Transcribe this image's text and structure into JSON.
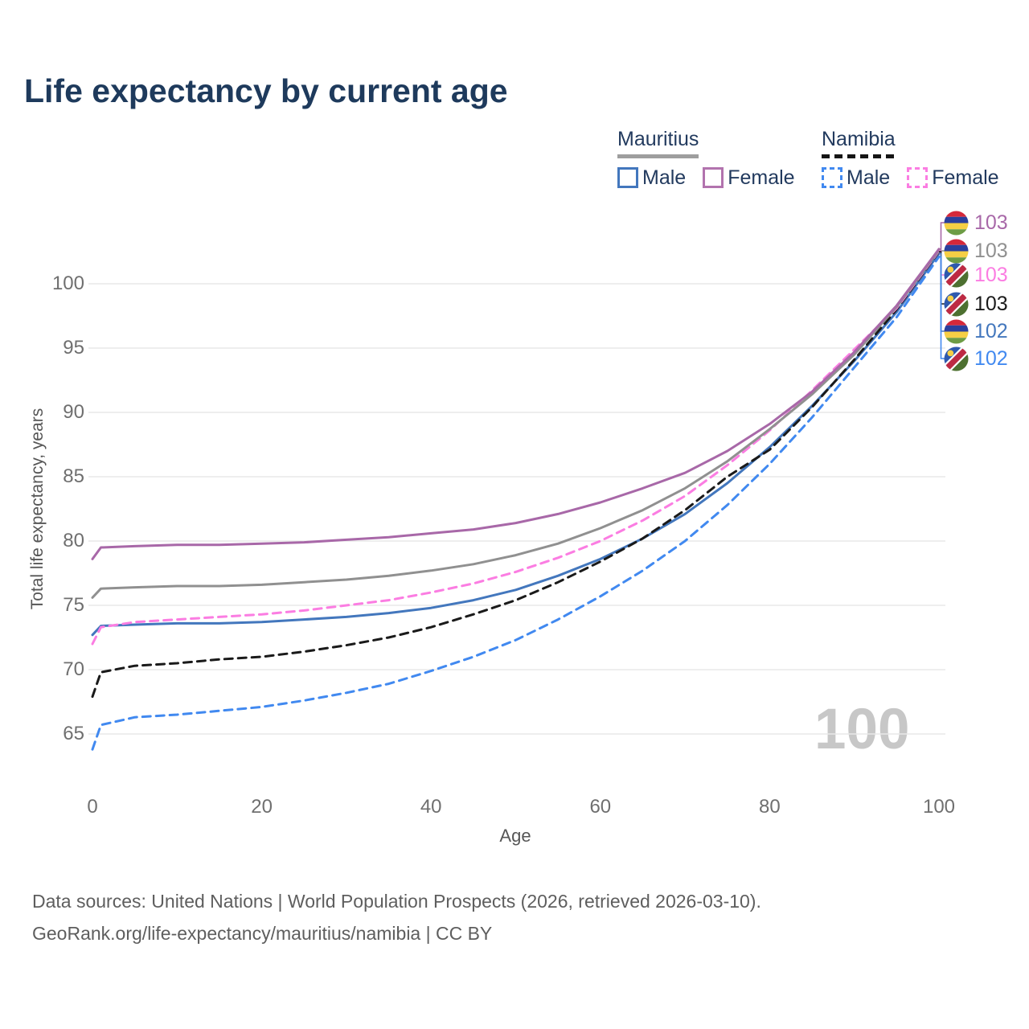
{
  "title": "Life expectancy by current age",
  "legend": {
    "groups": [
      {
        "id": "mauritius",
        "label": "Mauritius",
        "line_style": "solid",
        "underline_color": "#9e9e9e",
        "items": [
          {
            "id": "mauritius-male",
            "label": "Male",
            "color": "#4377bd",
            "dashed": false
          },
          {
            "id": "mauritius-female",
            "label": "Female",
            "color": "#b273ae",
            "dashed": false
          }
        ]
      },
      {
        "id": "namibia",
        "label": "Namibia",
        "line_style": "dashed",
        "underline_color": "#151515",
        "items": [
          {
            "id": "namibia-male",
            "label": "Male",
            "color": "#4189f0",
            "dashed": true
          },
          {
            "id": "namibia-female",
            "label": "Female",
            "color": "#fb7de2",
            "dashed": true
          }
        ]
      }
    ]
  },
  "chart_data": {
    "type": "line",
    "title": "Life expectancy by current age",
    "xlabel": "Age",
    "ylabel": "Total life expectancy, years",
    "xticks": [
      0,
      20,
      40,
      60,
      80,
      100
    ],
    "yticks": [
      65,
      70,
      75,
      80,
      85,
      90,
      95,
      100
    ],
    "xlim": [
      0,
      100
    ],
    "ylim": [
      63,
      103.5
    ],
    "grid": "horizontal",
    "legend_position": "top-right",
    "x": [
      0,
      1,
      5,
      10,
      15,
      20,
      25,
      30,
      35,
      40,
      45,
      50,
      55,
      60,
      65,
      70,
      75,
      80,
      85,
      90,
      95,
      100
    ],
    "series": [
      {
        "id": "mauritius-female",
        "name": "Mauritius Female",
        "country": "mauritius",
        "color": "#a868a8",
        "dashed": false,
        "end_label": "103",
        "values": [
          78.6,
          79.5,
          79.6,
          79.7,
          79.7,
          79.8,
          79.9,
          80.1,
          80.3,
          80.6,
          80.9,
          81.4,
          82.1,
          83.0,
          84.1,
          85.3,
          87.0,
          89.1,
          91.6,
          94.7,
          98.3,
          102.7
        ]
      },
      {
        "id": "mauritius-all",
        "name": "Mauritius",
        "country": "mauritius",
        "color": "#909090",
        "dashed": false,
        "end_label": "103",
        "values": [
          75.6,
          76.3,
          76.4,
          76.5,
          76.5,
          76.6,
          76.8,
          77.0,
          77.3,
          77.7,
          78.2,
          78.9,
          79.8,
          81.0,
          82.4,
          84.1,
          86.2,
          88.7,
          91.4,
          94.5,
          98.2,
          102.6
        ]
      },
      {
        "id": "namibia-female",
        "name": "Namibia Female",
        "country": "namibia",
        "color": "#fb7de2",
        "dashed": true,
        "end_label": "103",
        "values": [
          72.0,
          73.3,
          73.7,
          73.9,
          74.1,
          74.3,
          74.6,
          75.0,
          75.4,
          76.0,
          76.7,
          77.6,
          78.7,
          80.0,
          81.6,
          83.5,
          85.9,
          88.6,
          91.7,
          94.9,
          98.1,
          102.55
        ]
      },
      {
        "id": "namibia-all",
        "name": "Namibia",
        "country": "namibia",
        "color": "#1a1a1a",
        "dashed": true,
        "end_label": "103",
        "values": [
          67.9,
          69.8,
          70.3,
          70.5,
          70.8,
          71.0,
          71.4,
          71.9,
          72.5,
          73.3,
          74.3,
          75.4,
          76.8,
          78.4,
          80.2,
          82.4,
          85.0,
          87.1,
          90.4,
          94.1,
          98.0,
          102.5
        ]
      },
      {
        "id": "mauritius-male",
        "name": "Mauritius Male",
        "country": "mauritius",
        "color": "#4377bd",
        "dashed": false,
        "end_label": "102",
        "values": [
          72.7,
          73.4,
          73.5,
          73.6,
          73.6,
          73.7,
          73.9,
          74.1,
          74.4,
          74.8,
          75.4,
          76.2,
          77.3,
          78.6,
          80.2,
          82.1,
          84.5,
          87.3,
          90.5,
          94.0,
          97.8,
          102.35
        ]
      },
      {
        "id": "namibia-male",
        "name": "Namibia Male",
        "country": "namibia",
        "color": "#4189f0",
        "dashed": true,
        "end_label": "102",
        "values": [
          63.8,
          65.7,
          66.3,
          66.5,
          66.8,
          67.1,
          67.6,
          68.2,
          68.9,
          69.9,
          71.0,
          72.3,
          73.9,
          75.7,
          77.7,
          80.0,
          82.8,
          86.0,
          89.6,
          93.5,
          97.4,
          102.1
        ]
      }
    ]
  },
  "watermark": "100",
  "footer": {
    "line1": "Data sources: United Nations | World Population Prospects (2026, retrieved 2026-03-10).",
    "line2": "GeoRank.org/life-expectancy/mauritius/namibia | CC BY"
  }
}
